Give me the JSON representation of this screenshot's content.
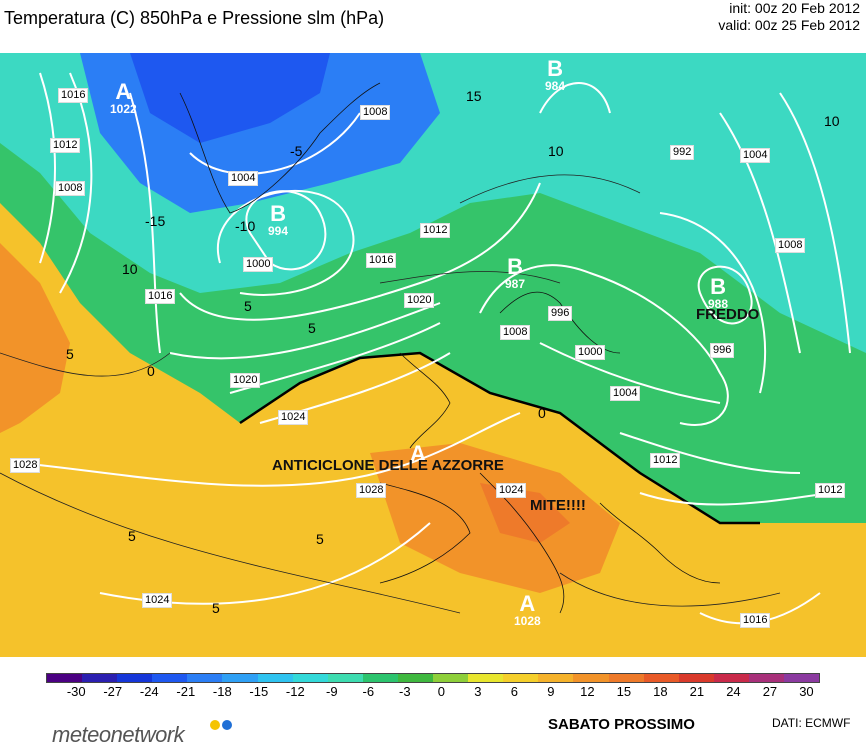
{
  "header": {
    "title": "Temperatura (C) 850hPa e Pressione slm (hPa)",
    "init": "init: 00z 20 Feb 2012",
    "valid": "valid: 00z 25 Feb 2012"
  },
  "map": {
    "annotations": {
      "anticyclone": "ANTICICLONE DELLE AZZORRE",
      "mild": "MITE!!!!",
      "cold": "FREDDO"
    },
    "pressure_centers": [
      {
        "letter": "A",
        "value": "1022"
      },
      {
        "letter": "B",
        "value": "984"
      },
      {
        "letter": "B",
        "value": "994"
      },
      {
        "letter": "B",
        "value": "987"
      },
      {
        "letter": "B",
        "value": "988"
      },
      {
        "letter": "A",
        "value": ""
      },
      {
        "letter": "A",
        "value": "1028"
      }
    ],
    "isobar_labels": [
      "1016",
      "1012",
      "1008",
      "1004",
      "1000",
      "1008",
      "1012",
      "1016",
      "1020",
      "1024",
      "1028",
      "1024",
      "1020",
      "1016",
      "1012",
      "1008",
      "1004",
      "1000",
      "996",
      "992",
      "996",
      "1004",
      "1008",
      "1012",
      "1016",
      "1028",
      "1024"
    ],
    "isotherm_labels": [
      "-15",
      "10",
      "5",
      "0",
      "5",
      "-5",
      "-10",
      "10",
      "15",
      "5",
      "0",
      "5",
      "5",
      "5",
      "10"
    ]
  },
  "legend": {
    "ticks": [
      "-30",
      "-27",
      "-24",
      "-21",
      "-18",
      "-15",
      "-12",
      "-9",
      "-6",
      "-3",
      "0",
      "3",
      "6",
      "9",
      "12",
      "15",
      "18",
      "21",
      "24",
      "27",
      "30"
    ],
    "colors": [
      "#4b0082",
      "#2b1fb0",
      "#1536d8",
      "#1e58f0",
      "#2b7ef5",
      "#2fa0f5",
      "#2fc3f0",
      "#33d9d9",
      "#3ddcb0",
      "#2cc46e",
      "#3fb83f",
      "#8ecf3a",
      "#e8e62e",
      "#f5cf2b",
      "#f5b22b",
      "#f29329",
      "#ee7a2a",
      "#e85a28",
      "#d93a2b",
      "#c92a4a",
      "#a8307a",
      "#8b3aa0"
    ],
    "subtitle": "SABATO PROSSIMO",
    "credit": "DATI:  ECMWF",
    "brand": "meteonetwork"
  }
}
